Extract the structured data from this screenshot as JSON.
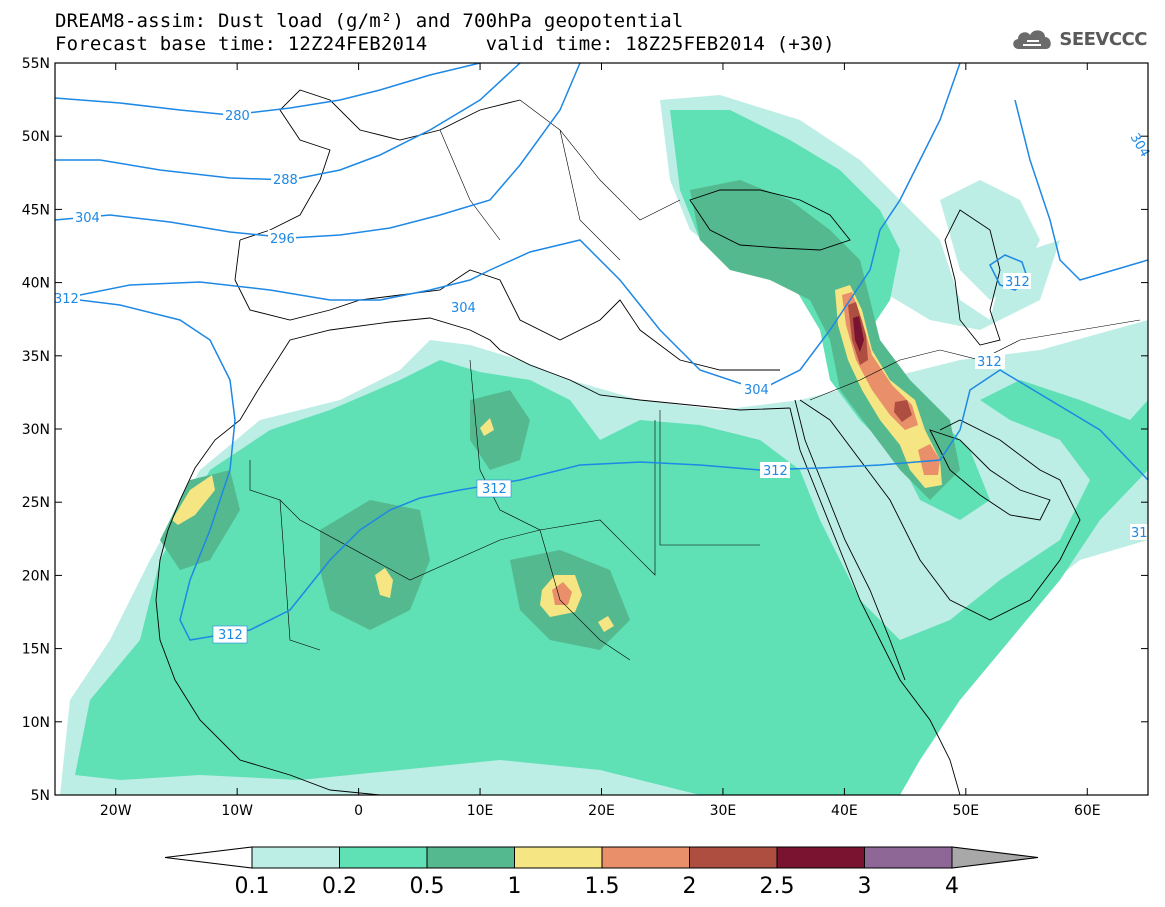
{
  "header": {
    "title_line1": "DREAM8-assim: Dust load (g/m²) and 700hPa geopotential",
    "title_line2": "Forecast base time: 12Z24FEB2014     valid time: 18Z25FEB2014 (+30)",
    "logo_text": "SEEVCCC",
    "logo_icon": "cloud-icon"
  },
  "map": {
    "lon_range": [
      -25,
      65
    ],
    "lat_range": [
      5,
      55
    ],
    "lat_ticks": [
      "55N",
      "50N",
      "45N",
      "40N",
      "35N",
      "30N",
      "25N",
      "20N",
      "15N",
      "10N",
      "5N"
    ],
    "lon_ticks": [
      "20W",
      "10W",
      "0",
      "10E",
      "20E",
      "30E",
      "40E",
      "50E",
      "60E"
    ],
    "contour_color": "#1e88e5",
    "contour_labels": [
      "280",
      "288",
      "304",
      "296",
      "304",
      "312",
      "312",
      "312",
      "304",
      "312",
      "312",
      "304",
      "31"
    ]
  },
  "colorbar": {
    "labels": [
      "0.1",
      "0.2",
      "0.5",
      "1",
      "1.5",
      "2",
      "2.5",
      "3",
      "4"
    ],
    "colors": [
      "#ffffff",
      "#bdeee6",
      "#5fe0b5",
      "#55b98f",
      "#f5e683",
      "#e9906a",
      "#ad4e40",
      "#7a1330",
      "#8f6797",
      "#a8a8a8"
    ]
  }
}
